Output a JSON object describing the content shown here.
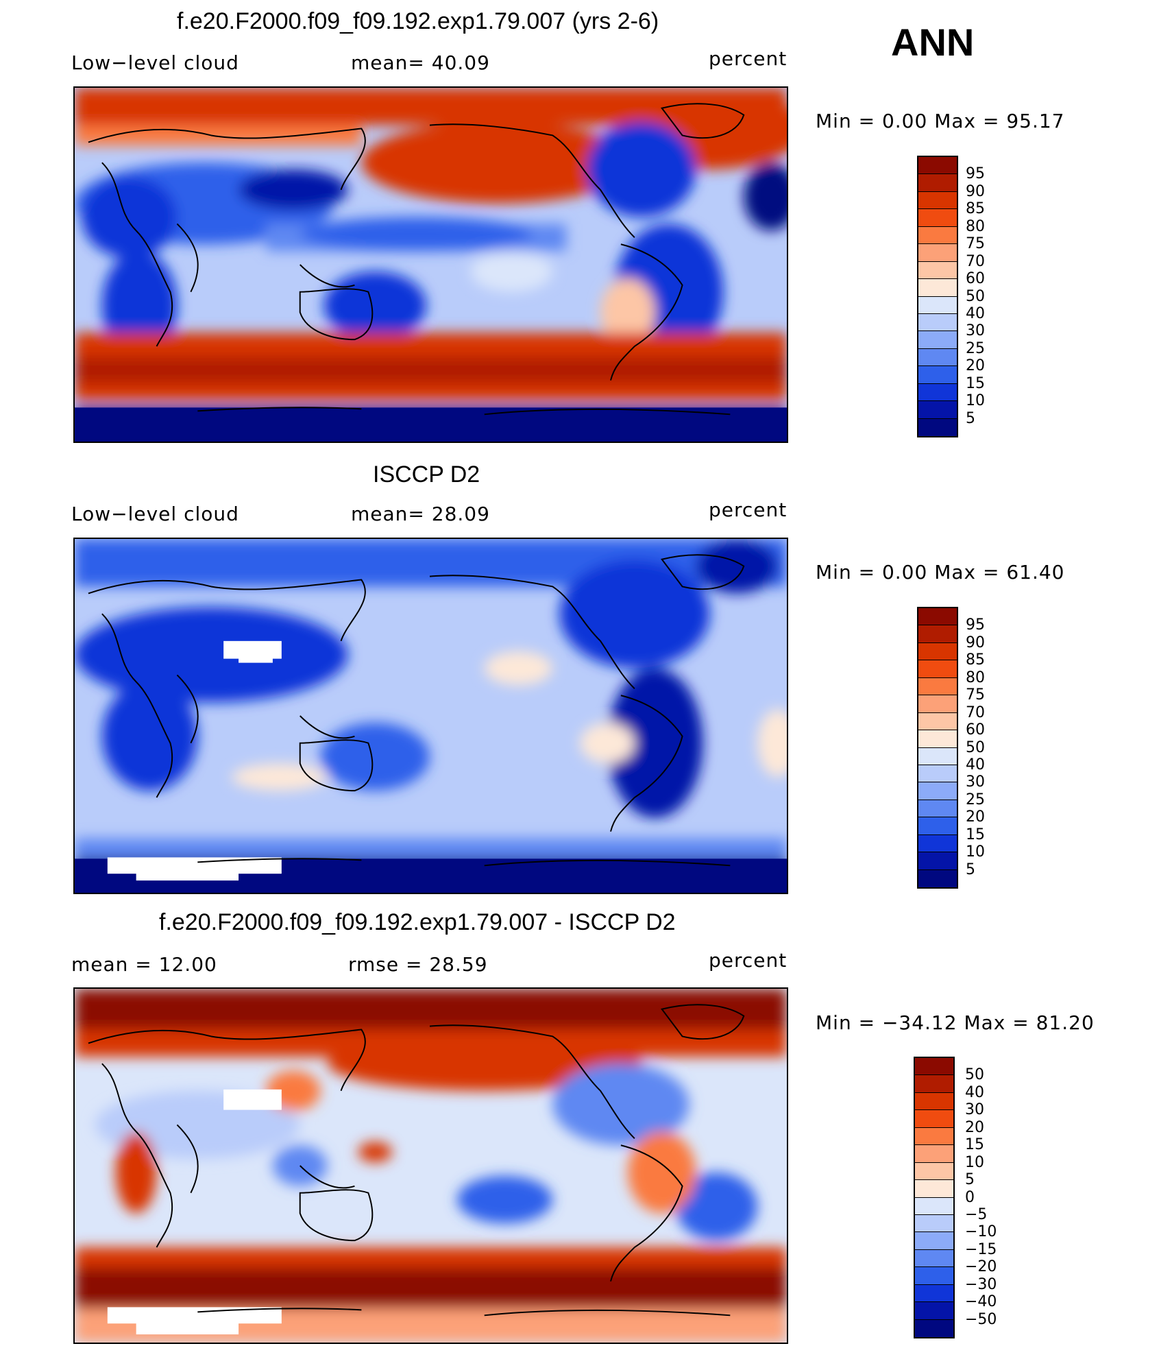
{
  "season": "ANN",
  "panels": [
    {
      "title": "f.e20.F2000.f09_f09.192.exp1.79.007 (yrs 2-6)",
      "left_label": "Low−level cloud",
      "mid_label": "mean=   40.09",
      "right_label": "percent",
      "minmax": "Min =    0.00  Max =   95.17",
      "ticks": [
        "95",
        "90",
        "85",
        "80",
        "75",
        "70",
        "60",
        "50",
        "40",
        "30",
        "25",
        "20",
        "15",
        "10",
        "5"
      ],
      "colors": [
        "#8b0a00",
        "#b01c00",
        "#d83500",
        "#f04c10",
        "#fa7a40",
        "#fca178",
        "#fdc6a6",
        "#fde8d8",
        "#dbe6fa",
        "#b9ccfa",
        "#8cabf8",
        "#5f88f2",
        "#2e60ea",
        "#1035d8",
        "#0414a8",
        "#000880"
      ]
    },
    {
      "title": "ISCCP D2",
      "left_label": "Low−level cloud",
      "mid_label": "mean=   28.09",
      "right_label": "percent",
      "minmax": "Min =    0.00  Max =   61.40",
      "ticks": [
        "95",
        "90",
        "85",
        "80",
        "75",
        "70",
        "60",
        "50",
        "40",
        "30",
        "25",
        "20",
        "15",
        "10",
        "5"
      ],
      "colors": [
        "#8b0a00",
        "#b01c00",
        "#d83500",
        "#f04c10",
        "#fa7a40",
        "#fca178",
        "#fdc6a6",
        "#fde8d8",
        "#dbe6fa",
        "#b9ccfa",
        "#8cabf8",
        "#5f88f2",
        "#2e60ea",
        "#1035d8",
        "#0414a8",
        "#000880"
      ]
    },
    {
      "title": "f.e20.F2000.f09_f09.192.exp1.79.007 - ISCCP D2",
      "left_label": "mean =    12.00",
      "mid_label": "rmse =    28.59",
      "right_label": "percent",
      "minmax": "Min = −34.12  Max =   81.20",
      "ticks": [
        "50",
        "40",
        "30",
        "20",
        "15",
        "10",
        "5",
        "0",
        "−5",
        "−10",
        "−15",
        "−20",
        "−30",
        "−40",
        "−50"
      ],
      "colors": [
        "#8b0a00",
        "#b01c00",
        "#d83500",
        "#f04c10",
        "#fa7a40",
        "#fca178",
        "#fdc6a6",
        "#fde8d8",
        "#dbe6fa",
        "#b9ccfa",
        "#8cabf8",
        "#5f88f2",
        "#2e60ea",
        "#1035d8",
        "#0414a8",
        "#000880"
      ]
    }
  ]
}
